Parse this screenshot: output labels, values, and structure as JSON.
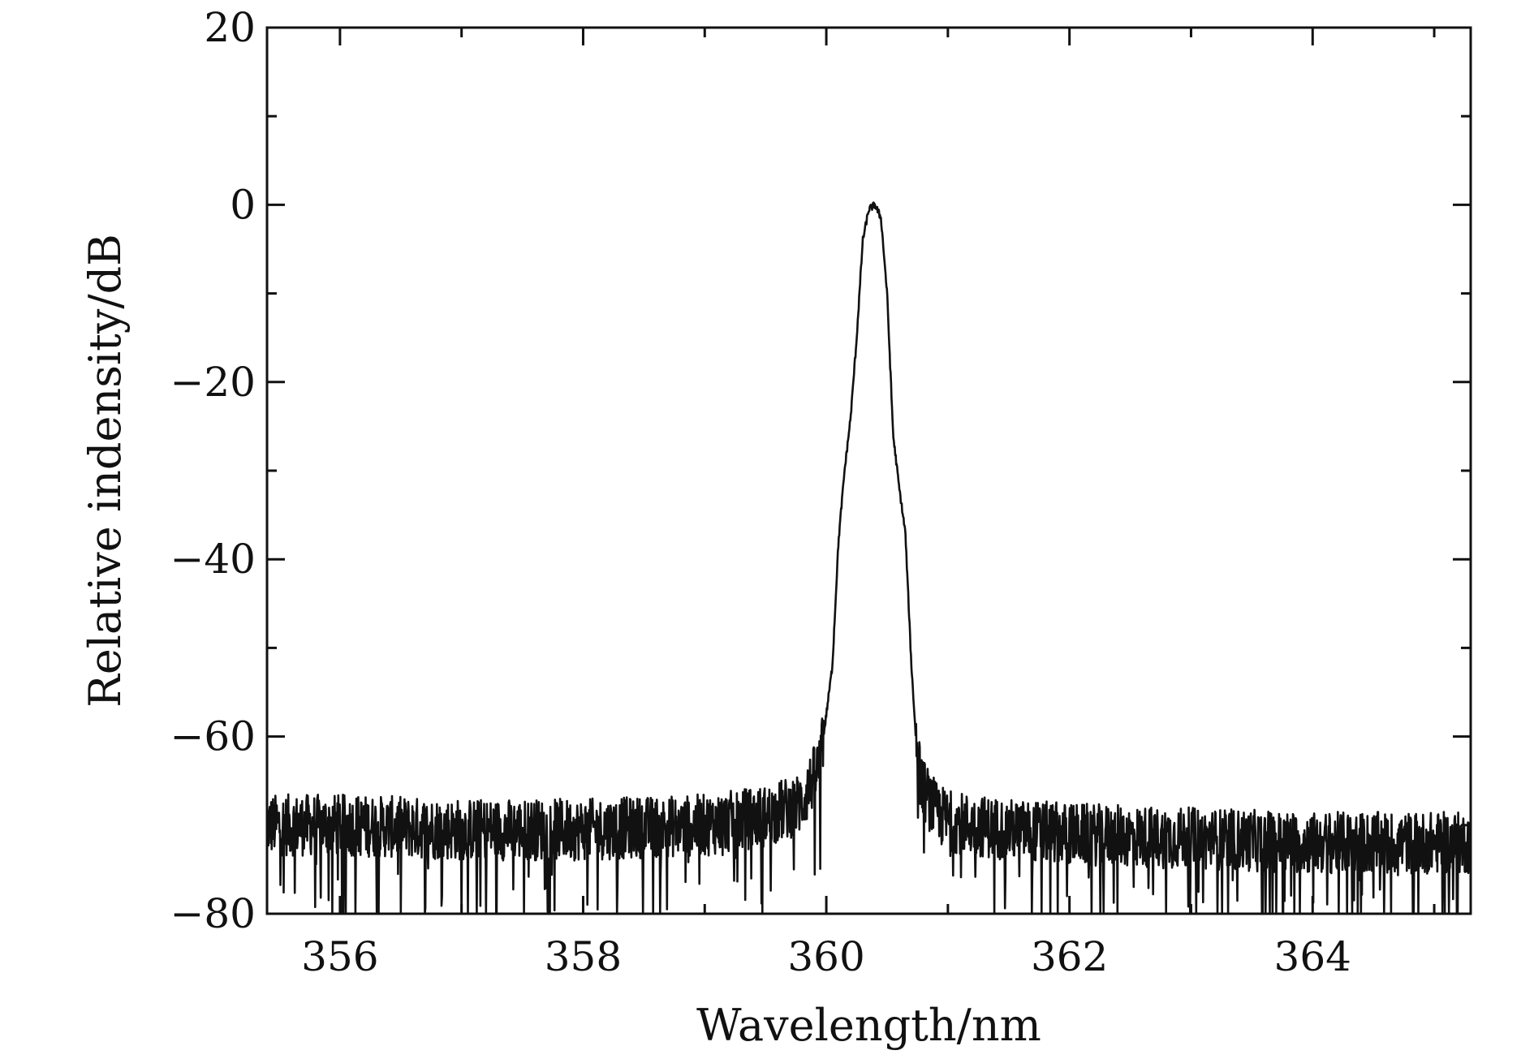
{
  "chart_data": {
    "type": "line",
    "title": "",
    "xlabel": "Wavelength/nm",
    "ylabel": "Relative indensity/dB",
    "xlim": [
      355.4,
      365.3
    ],
    "ylim": [
      -80,
      20
    ],
    "xticks": [
      356,
      358,
      360,
      362,
      364
    ],
    "xtick_labels": [
      "356",
      "358",
      "360",
      "362",
      "364"
    ],
    "yticks": [
      20,
      0,
      -20,
      -40,
      -60,
      -80
    ],
    "ytick_labels": [
      "20",
      "0",
      "−20",
      "−40",
      "−60",
      "−80"
    ],
    "x_minor_step": 1,
    "y_minor_step": 10,
    "grid": false,
    "legend": "none",
    "line_color": "#111111",
    "series": [
      {
        "x": [
          355.4,
          356.0,
          357.0,
          358.0,
          359.0,
          359.5,
          359.8,
          359.95,
          360.05,
          360.1,
          360.15,
          360.2,
          360.25,
          360.3,
          360.35,
          360.4,
          360.45,
          360.5,
          360.55,
          360.6,
          360.65,
          360.7,
          360.75,
          360.8,
          360.9,
          361.0,
          361.2,
          361.5,
          362.0,
          363.0,
          364.0,
          365.3
        ],
        "y": [
          -70,
          -70,
          -70.5,
          -70.5,
          -70,
          -69,
          -67.5,
          -63,
          -52,
          -38,
          -30,
          -24,
          -15,
          -4,
          -0.5,
          0,
          -1.5,
          -10,
          -26,
          -32,
          -37,
          -52,
          -63,
          -66,
          -68.5,
          -69.5,
          -70,
          -70.5,
          -71,
          -71.5,
          -72,
          -72
        ],
        "noise_amplitude_db": 3.5
      }
    ]
  }
}
